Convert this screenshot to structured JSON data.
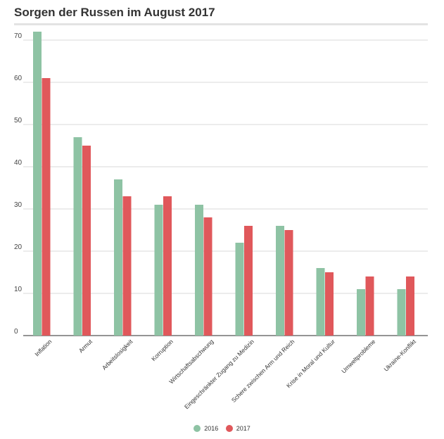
{
  "header": {
    "title": "Sorgen der Russen im August 2017"
  },
  "colors": {
    "series_2016": "#8ec3a4",
    "series_2017": "#e0585b",
    "grid": "#cccccc"
  },
  "chart_data": {
    "type": "bar",
    "title": "Sorgen der Russen im August 2017",
    "xlabel": "",
    "ylabel": "",
    "ylim": [
      0,
      75
    ],
    "yticks": [
      0,
      10,
      20,
      30,
      40,
      50,
      60,
      70
    ],
    "grid": true,
    "legend_position": "bottom",
    "categories": [
      "Inflation",
      "Armut",
      "Arbeitslosigkeit",
      "Korruption",
      "Wirtschaftsabschwung",
      "Eingeschränkter Zugang zu Medizin",
      "Schere zwischen Arm und Reich",
      "Krise in Moral und Kultur",
      "Umweltprobleme",
      "Ukraine-Konflikt"
    ],
    "series": [
      {
        "name": "2016",
        "color": "#8ec3a4",
        "values": [
          72,
          47,
          37,
          31,
          31,
          22,
          26,
          16,
          11,
          11
        ]
      },
      {
        "name": "2017",
        "color": "#e0585b",
        "values": [
          61,
          45,
          33,
          33,
          28,
          26,
          25,
          15,
          14,
          14
        ]
      }
    ]
  }
}
